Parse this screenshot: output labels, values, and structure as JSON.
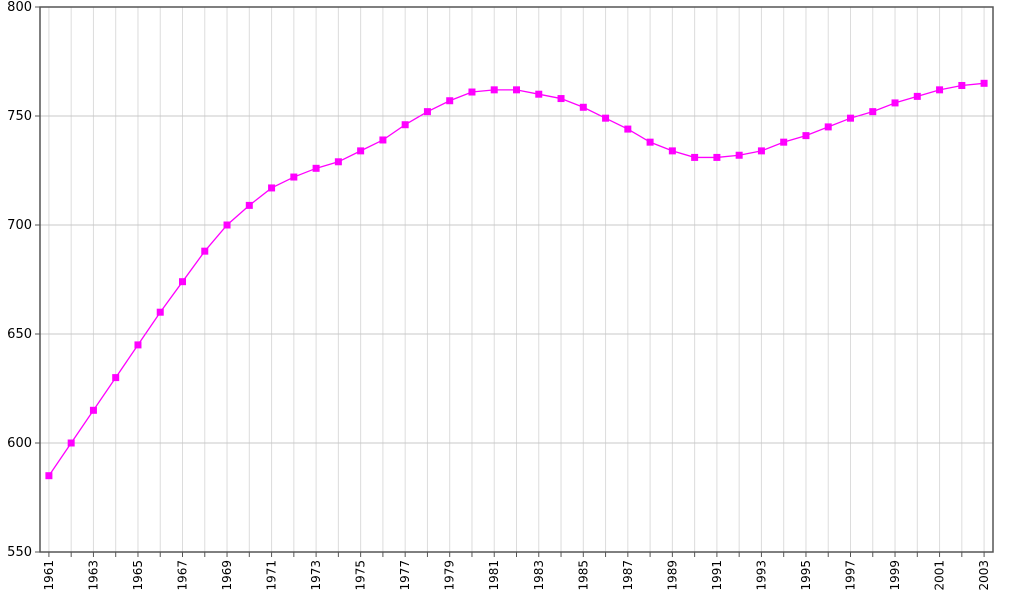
{
  "chart_data": {
    "type": "line",
    "title": "",
    "xlabel": "",
    "ylabel": "",
    "x": [
      1961,
      1962,
      1963,
      1964,
      1965,
      1966,
      1967,
      1968,
      1969,
      1970,
      1971,
      1972,
      1973,
      1974,
      1975,
      1976,
      1977,
      1978,
      1979,
      1980,
      1981,
      1982,
      1983,
      1984,
      1985,
      1986,
      1987,
      1988,
      1989,
      1990,
      1991,
      1992,
      1993,
      1994,
      1995,
      1996,
      1997,
      1998,
      1999,
      2000,
      2001,
      2002,
      2003
    ],
    "series": [
      {
        "values": [
          585,
          600,
          615,
          630,
          645,
          660,
          674,
          688,
          700,
          709,
          717,
          722,
          726,
          729,
          734,
          739,
          746,
          752,
          757,
          761,
          762,
          762,
          760,
          758,
          754,
          749,
          744,
          738,
          734,
          731,
          731,
          732,
          734,
          738,
          741,
          745,
          749,
          752,
          756,
          759,
          762,
          764,
          765
        ],
        "color": "#ff00ff",
        "marker": "square"
      }
    ],
    "ylim": [
      550,
      800
    ],
    "yticks": [
      "550",
      "600",
      "650",
      "700",
      "750",
      "800"
    ],
    "xticks": [
      "1961",
      "1963",
      "1965",
      "1967",
      "1969",
      "1971",
      "1973",
      "1975",
      "1977",
      "1979",
      "1981",
      "1983",
      "1985",
      "1987",
      "1989",
      "1991",
      "1993",
      "1995",
      "1997",
      "1999",
      "2001",
      "2003"
    ],
    "grid": true,
    "legend": "none"
  }
}
